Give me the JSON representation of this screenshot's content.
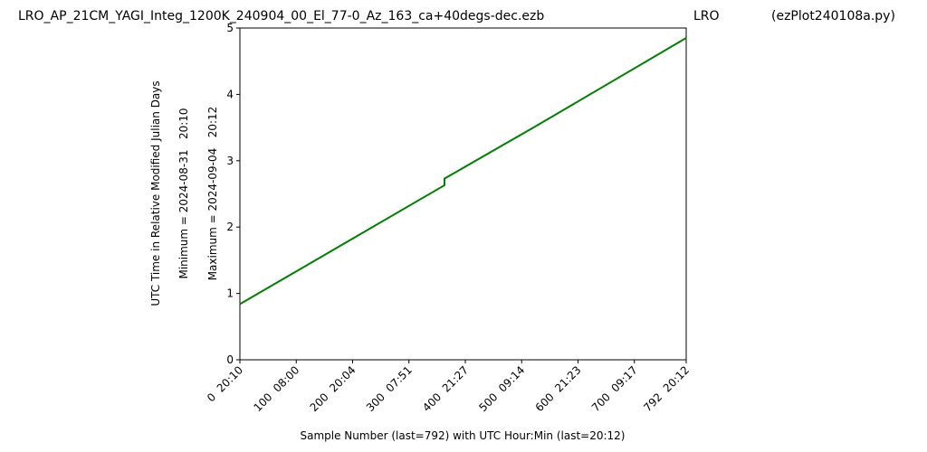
{
  "chart_data": {
    "type": "line",
    "title": "LRO_AP_21CM_YAGI_Integ_1200K_240904_00_El_77-0_Az_163_ca+40degs-dec.ezb",
    "title_middle": "LRO",
    "title_right": "(ezPlot240108a.py)",
    "ylabel": "UTC Time in Relative Modified Julian Days",
    "ylabel_min": "Minimum = 2024-08-31   20:10",
    "ylabel_max": "Maximum = 2024-09-04   20:12",
    "xlabel": "Sample Number (last=792) with UTC Hour:Min (last=20:12)",
    "x": [
      0,
      140,
      363,
      363,
      525,
      792
    ],
    "series": [
      {
        "color": "#008000",
        "values": [
          0.84,
          1.53,
          2.63,
          2.73,
          3.52,
          4.85
        ]
      }
    ],
    "xlim": [
      0,
      792
    ],
    "ylim": [
      0,
      5
    ],
    "xticks": [
      {
        "value": 0,
        "label": "0  20:10"
      },
      {
        "value": 100,
        "label": "100  08:00"
      },
      {
        "value": 200,
        "label": "200  20:04"
      },
      {
        "value": 300,
        "label": "300  07:51"
      },
      {
        "value": 400,
        "label": "400  21:27"
      },
      {
        "value": 500,
        "label": "500  09:14"
      },
      {
        "value": 600,
        "label": "600  21:23"
      },
      {
        "value": 700,
        "label": "700  09:17"
      },
      {
        "value": 792,
        "label": "792  20:12"
      }
    ],
    "yticks": [
      0,
      1,
      2,
      3,
      4,
      5
    ]
  }
}
